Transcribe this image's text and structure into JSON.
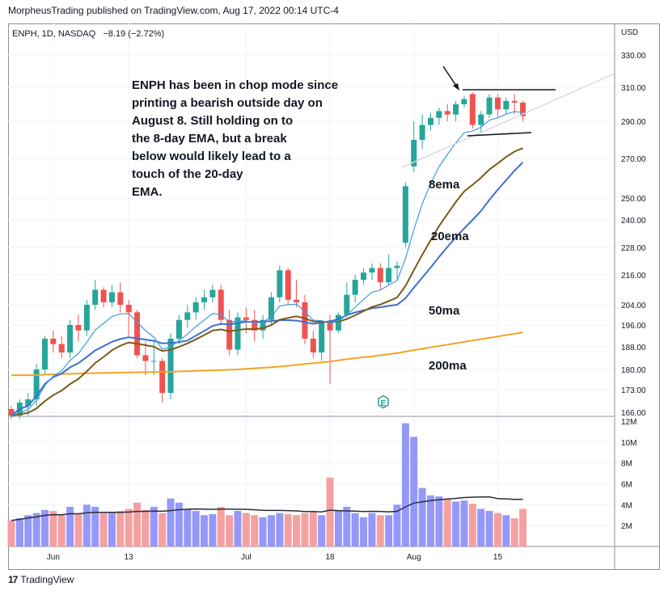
{
  "header": {
    "publisher": "MorpheusTrading published on TradingView.com, Aug 17, 2022 00:14 UTC-4"
  },
  "legend": {
    "symbol": "ENPH, 1D, NASDAQ",
    "change": "−8.19 (−2.72%)"
  },
  "footer": {
    "brand": "TradingView"
  },
  "chart_data": {
    "type": "candlestick",
    "currency_label": "USD",
    "price_ticks": [
      166,
      173,
      180,
      188,
      196,
      204,
      216,
      228,
      240,
      250,
      270,
      290,
      310,
      330
    ],
    "volume_ticks": [
      "2M",
      "4M",
      "6M",
      "8M",
      "10M",
      "12M"
    ],
    "volume_tick_values": [
      2,
      4,
      6,
      8,
      10,
      12
    ],
    "x_labels": [
      {
        "label": "Jun",
        "index": 5
      },
      {
        "label": "13",
        "index": 14
      },
      {
        "label": "Jul",
        "index": 28
      },
      {
        "label": "18",
        "index": 38
      },
      {
        "label": "Aug",
        "index": 48
      },
      {
        "label": "15",
        "index": 58
      }
    ],
    "candles": [
      {
        "o": 167,
        "h": 168,
        "l": 164,
        "c": 165,
        "v": 2.5
      },
      {
        "o": 165,
        "h": 170,
        "l": 164,
        "c": 169,
        "v": 2.7
      },
      {
        "o": 168,
        "h": 172,
        "l": 165,
        "c": 170,
        "v": 3.0
      },
      {
        "o": 170,
        "h": 182,
        "l": 168,
        "c": 180,
        "v": 3.2
      },
      {
        "o": 180,
        "h": 192,
        "l": 178,
        "c": 191,
        "v": 3.5
      },
      {
        "o": 191,
        "h": 194,
        "l": 186,
        "c": 189,
        "v": 3.4
      },
      {
        "o": 189,
        "h": 192,
        "l": 184,
        "c": 186,
        "v": 3.0
      },
      {
        "o": 186,
        "h": 198,
        "l": 184,
        "c": 196,
        "v": 3.8
      },
      {
        "o": 196,
        "h": 200,
        "l": 190,
        "c": 194,
        "v": 3.1
      },
      {
        "o": 194,
        "h": 206,
        "l": 192,
        "c": 204,
        "v": 4.0
      },
      {
        "o": 204,
        "h": 214,
        "l": 202,
        "c": 210,
        "v": 3.8
      },
      {
        "o": 210,
        "h": 211,
        "l": 203,
        "c": 205,
        "v": 3.2
      },
      {
        "o": 205,
        "h": 212,
        "l": 203,
        "c": 209,
        "v": 3.3
      },
      {
        "o": 209,
        "h": 213,
        "l": 201,
        "c": 204,
        "v": 3.4
      },
      {
        "o": 204,
        "h": 206,
        "l": 192,
        "c": 201,
        "v": 3.6
      },
      {
        "o": 201,
        "h": 202,
        "l": 184,
        "c": 185,
        "v": 4.2
      },
      {
        "o": 185,
        "h": 190,
        "l": 178,
        "c": 183,
        "v": 3.5
      },
      {
        "o": 183,
        "h": 190,
        "l": 178,
        "c": 183,
        "v": 3.8
      },
      {
        "o": 183,
        "h": 184,
        "l": 169,
        "c": 172,
        "v": 3.2
      },
      {
        "o": 172,
        "h": 193,
        "l": 170,
        "c": 191,
        "v": 4.6
      },
      {
        "o": 191,
        "h": 200,
        "l": 189,
        "c": 198,
        "v": 4.2
      },
      {
        "o": 198,
        "h": 204,
        "l": 195,
        "c": 201,
        "v": 3.6
      },
      {
        "o": 201,
        "h": 207,
        "l": 198,
        "c": 205,
        "v": 3.4
      },
      {
        "o": 205,
        "h": 210,
        "l": 202,
        "c": 207,
        "v": 3.0
      },
      {
        "o": 207,
        "h": 212,
        "l": 205,
        "c": 210,
        "v": 3.1
      },
      {
        "o": 210,
        "h": 212,
        "l": 196,
        "c": 198,
        "v": 3.8
      },
      {
        "o": 198,
        "h": 202,
        "l": 185,
        "c": 187,
        "v": 3.0
      },
      {
        "o": 187,
        "h": 201,
        "l": 185,
        "c": 199,
        "v": 3.4
      },
      {
        "o": 199,
        "h": 203,
        "l": 193,
        "c": 198,
        "v": 3.2
      },
      {
        "o": 198,
        "h": 202,
        "l": 190,
        "c": 194,
        "v": 3.0
      },
      {
        "o": 194,
        "h": 200,
        "l": 191,
        "c": 198,
        "v": 2.8
      },
      {
        "o": 198,
        "h": 209,
        "l": 196,
        "c": 207,
        "v": 3.0
      },
      {
        "o": 207,
        "h": 220,
        "l": 205,
        "c": 218,
        "v": 3.2
      },
      {
        "o": 218,
        "h": 219,
        "l": 204,
        "c": 206,
        "v": 3.1
      },
      {
        "o": 206,
        "h": 214,
        "l": 203,
        "c": 205,
        "v": 3.0
      },
      {
        "o": 205,
        "h": 208,
        "l": 189,
        "c": 191,
        "v": 3.2
      },
      {
        "o": 191,
        "h": 194,
        "l": 184,
        "c": 186,
        "v": 3.4
      },
      {
        "o": 186,
        "h": 198,
        "l": 183,
        "c": 197,
        "v": 3.0
      },
      {
        "o": 197,
        "h": 200,
        "l": 175,
        "c": 194,
        "v": 6.6
      },
      {
        "o": 194,
        "h": 201,
        "l": 193,
        "c": 200,
        "v": 3.5
      },
      {
        "o": 200,
        "h": 213,
        "l": 199,
        "c": 208,
        "v": 3.8
      },
      {
        "o": 208,
        "h": 216,
        "l": 205,
        "c": 214,
        "v": 3.2
      },
      {
        "o": 214,
        "h": 219,
        "l": 212,
        "c": 217,
        "v": 2.8
      },
      {
        "o": 217,
        "h": 221,
        "l": 214,
        "c": 219,
        "v": 3.2
      },
      {
        "o": 219,
        "h": 221,
        "l": 210,
        "c": 213,
        "v": 3.0
      },
      {
        "o": 213,
        "h": 225,
        "l": 212,
        "c": 219,
        "v": 3.0
      },
      {
        "o": 219,
        "h": 222,
        "l": 214,
        "c": 220,
        "v": 4.0
      },
      {
        "o": 230,
        "h": 258,
        "l": 228,
        "c": 256,
        "v": 11.8
      },
      {
        "o": 266,
        "h": 290,
        "l": 263,
        "c": 280,
        "v": 10.5
      },
      {
        "o": 280,
        "h": 294,
        "l": 275,
        "c": 288,
        "v": 5.6
      },
      {
        "o": 288,
        "h": 295,
        "l": 285,
        "c": 292,
        "v": 4.9
      },
      {
        "o": 292,
        "h": 298,
        "l": 288,
        "c": 296,
        "v": 4.8
      },
      {
        "o": 296,
        "h": 300,
        "l": 290,
        "c": 294,
        "v": 4.6
      },
      {
        "o": 294,
        "h": 302,
        "l": 290,
        "c": 300,
        "v": 4.3
      },
      {
        "o": 300,
        "h": 305,
        "l": 298,
        "c": 303,
        "v": 4.4
      },
      {
        "o": 306,
        "h": 307,
        "l": 286,
        "c": 288,
        "v": 4.1
      },
      {
        "o": 288,
        "h": 296,
        "l": 284,
        "c": 294,
        "v": 3.6
      },
      {
        "o": 294,
        "h": 306,
        "l": 292,
        "c": 304,
        "v": 3.4
      },
      {
        "o": 304,
        "h": 306,
        "l": 292,
        "c": 297,
        "v": 3.2
      },
      {
        "o": 297,
        "h": 304,
        "l": 294,
        "c": 302,
        "v": 3.0
      },
      {
        "o": 302,
        "h": 306,
        "l": 294,
        "c": 301,
        "v": 2.7
      },
      {
        "o": 301,
        "h": 302,
        "l": 290,
        "c": 293,
        "v": 3.6
      }
    ],
    "lines": {
      "ema8": {
        "color": "#3c9ee0"
      },
      "ema20": {
        "color": "#7b5a18"
      },
      "ma50": {
        "color": "#3e6fd0"
      },
      "ma200": {
        "color": "#f5a322",
        "values": [
          178,
          178,
          178,
          178,
          178.2,
          178.3,
          178.4,
          178.5,
          178.6,
          178.7,
          178.7,
          178.8,
          178.8,
          178.9,
          179,
          179,
          179.1,
          179.1,
          179.2,
          179.2,
          179.3,
          179.4,
          179.5,
          179.6,
          179.7,
          179.8,
          179.9,
          180,
          180.2,
          180.4,
          180.6,
          180.8,
          181,
          181.3,
          181.6,
          181.9,
          182.2,
          182.5,
          182.8,
          183.2,
          183.6,
          184,
          184.3,
          184.6,
          185,
          185.4,
          185.8,
          186.3,
          186.8,
          187.3,
          187.8,
          188.3,
          188.8,
          189.3,
          189.8,
          190.3,
          190.8,
          191.3,
          191.8,
          192.3,
          192.8,
          193.3
        ]
      },
      "volume_ma": {
        "color": "#2a2e39"
      }
    },
    "annotation": "ENPH has been in chop mode since printing a bearish outside day on August 8.  Still holding on to the 8-day EMA, but a break below would likely lead to a touch of the 20-day EMA.",
    "line_labels": [
      "8ema",
      "20ema",
      "50ma",
      "200ma"
    ],
    "earnings_marker": "E",
    "colors": {
      "up": "#26a69a",
      "down": "#ef5350",
      "vol_up": "#9598f9",
      "vol_down": "#f5a0a0"
    }
  }
}
